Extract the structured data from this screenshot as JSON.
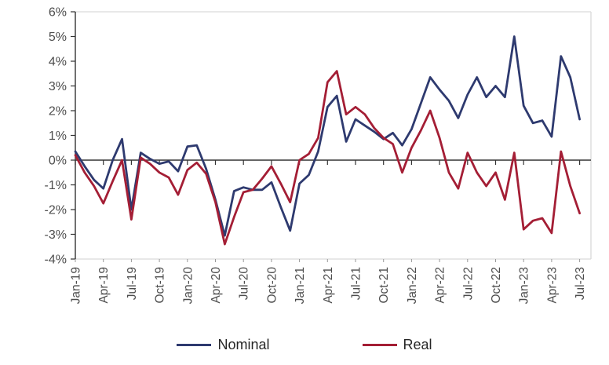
{
  "chart_data": {
    "type": "line",
    "title": "",
    "x_frequency": "monthly",
    "x_range": [
      "Jan-19",
      "Jul-23"
    ],
    "x_tick_labels": [
      "Jan-19",
      "Apr-19",
      "Jul-19",
      "Oct-19",
      "Jan-20",
      "Apr-20",
      "Jul-20",
      "Oct-20",
      "Jan-21",
      "Apr-21",
      "Jul-21",
      "Oct-21",
      "Jan-22",
      "Apr-22",
      "Jul-22",
      "Oct-22",
      "Jan-23",
      "Apr-23",
      "Jul-23"
    ],
    "x_tick_month_indices": [
      0,
      3,
      6,
      9,
      12,
      15,
      18,
      21,
      24,
      27,
      30,
      33,
      36,
      39,
      42,
      45,
      48,
      51,
      54
    ],
    "ylim": [
      -4,
      6
    ],
    "y_ticks": [
      6,
      5,
      4,
      3,
      2,
      1,
      0,
      -1,
      -2,
      -3,
      -4
    ],
    "y_tick_suffix": "%",
    "grid": false,
    "zero_axis_line": true,
    "legend_position": "bottom-center",
    "axis_text_color": "#4d4d4d",
    "axis_line_color": "#333333",
    "plot_border_color": "#d9d9d9",
    "series": [
      {
        "name": "Nominal",
        "color": "#2e3a6f",
        "values": [
          0.35,
          -0.25,
          -0.8,
          -1.15,
          0,
          0.85,
          -2,
          0.3,
          0.05,
          -0.15,
          -0.05,
          -0.45,
          0.55,
          0.6,
          -0.35,
          -1.6,
          -3.05,
          -1.25,
          -1.1,
          -1.2,
          -1.2,
          -0.9,
          -1.9,
          -2.85,
          -0.95,
          -0.6,
          0.35,
          2.15,
          2.6,
          0.75,
          1.65,
          1.4,
          1.15,
          0.85,
          1.1,
          0.6,
          1.25,
          2.3,
          3.35,
          2.85,
          2.4,
          1.7,
          2.65,
          3.35,
          2.55,
          3,
          2.55,
          5,
          2.2,
          1.5,
          1.6,
          0.95,
          4.2,
          3.35,
          1.65
        ]
      },
      {
        "name": "Real",
        "color": "#a41e35",
        "values": [
          0.2,
          -0.5,
          -1.05,
          -1.75,
          -0.85,
          0,
          -2.4,
          0.1,
          -0.15,
          -0.5,
          -0.7,
          -1.4,
          -0.4,
          -0.1,
          -0.55,
          -1.7,
          -3.4,
          -2.3,
          -1.3,
          -1.2,
          -0.75,
          -0.25,
          -0.95,
          -1.7,
          0,
          0.25,
          0.9,
          3.15,
          3.6,
          1.85,
          2.15,
          1.85,
          1.3,
          0.9,
          0.65,
          -0.5,
          0.5,
          1.2,
          2,
          0.9,
          -0.5,
          -1.15,
          0.3,
          -0.5,
          -1.05,
          -0.5,
          -1.6,
          0.3,
          -2.8,
          -2.45,
          -2.35,
          -2.95,
          0.35,
          -1.05,
          -2.15
        ]
      }
    ]
  }
}
